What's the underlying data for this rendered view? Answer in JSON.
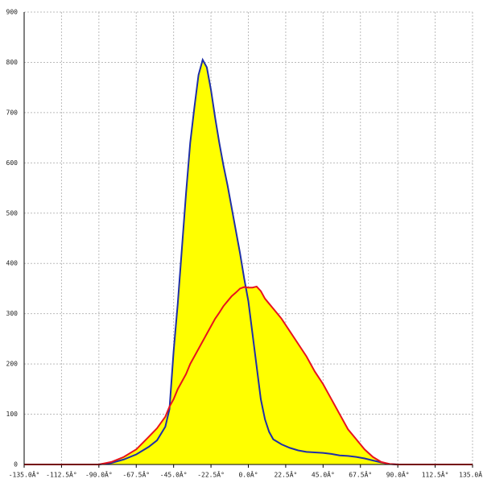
{
  "chart_data": {
    "type": "line",
    "x": [
      -135,
      -112.5,
      -90,
      -82.5,
      -75,
      -67.5,
      -60,
      -55,
      -50,
      -47.5,
      -45,
      -42.5,
      -40,
      -37.5,
      -35,
      -32.5,
      -30,
      -27.5,
      -25,
      -22.5,
      -20,
      -17.5,
      -15,
      -12.5,
      -10,
      -7.5,
      -5,
      -2.5,
      0,
      2.5,
      5,
      7.5,
      10,
      12.5,
      15,
      17.5,
      20,
      25,
      30,
      35,
      40,
      45,
      50,
      55,
      60,
      65,
      70,
      75,
      80,
      85,
      90,
      112.5,
      135
    ],
    "series": [
      {
        "color": "#1f2fa8",
        "values": [
          0,
          0,
          0,
          3,
          10,
          20,
          35,
          48,
          75,
          110,
          225,
          320,
          430,
          540,
          640,
          710,
          775,
          805,
          790,
          745,
          690,
          640,
          595,
          555,
          510,
          465,
          420,
          370,
          325,
          260,
          195,
          130,
          90,
          65,
          50,
          45,
          40,
          33,
          28,
          25,
          24,
          23,
          21,
          18,
          17,
          15,
          12,
          8,
          4,
          1,
          0,
          0,
          0
        ]
      },
      {
        "color": "#e8121e",
        "values": [
          0,
          0,
          0,
          5,
          15,
          30,
          55,
          72,
          95,
          115,
          130,
          150,
          165,
          180,
          200,
          215,
          230,
          245,
          260,
          275,
          290,
          302,
          315,
          325,
          335,
          342,
          350,
          353,
          352,
          352,
          354,
          345,
          330,
          320,
          310,
          300,
          290,
          265,
          240,
          215,
          185,
          160,
          130,
          100,
          70,
          50,
          30,
          15,
          5,
          1,
          0,
          0,
          0
        ]
      }
    ],
    "fill_color": "#ffff00",
    "xlim": [
      -135,
      135
    ],
    "xticks": [
      {
        "value": -135,
        "label": "-135.0Â°"
      },
      {
        "value": -112.5,
        "label": "-112.5Â°"
      },
      {
        "value": -90,
        "label": "-90.0Â°"
      },
      {
        "value": -67.5,
        "label": "-67.5Â°"
      },
      {
        "value": -45,
        "label": "-45.0Â°"
      },
      {
        "value": -22.5,
        "label": "-22.5Â°"
      },
      {
        "value": 0,
        "label": "0.0Â°"
      },
      {
        "value": 22.5,
        "label": "22.5Â°"
      },
      {
        "value": 45,
        "label": "45.0Â°"
      },
      {
        "value": 67.5,
        "label": "67.5Â°"
      },
      {
        "value": 90,
        "label": "90.0Â°"
      },
      {
        "value": 112.5,
        "label": "112.5Â°"
      },
      {
        "value": 135,
        "label": "135.0Â°"
      }
    ],
    "ylim": [
      0,
      900
    ],
    "yticks": [
      0,
      100,
      200,
      300,
      400,
      500,
      600,
      700,
      800,
      900
    ],
    "grid": true
  }
}
